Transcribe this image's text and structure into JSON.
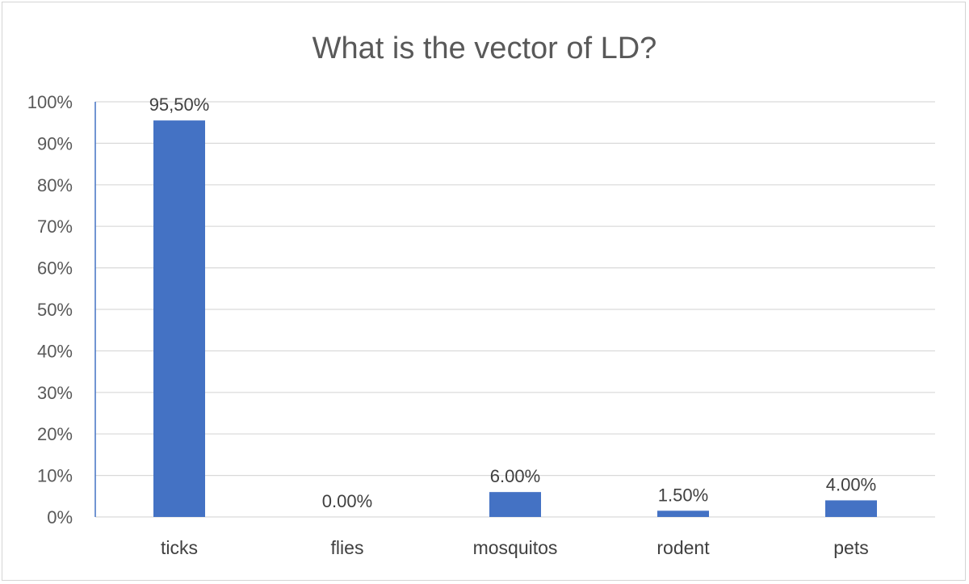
{
  "chart_data": {
    "type": "bar",
    "title": "What is the vector of LD?",
    "categories": [
      "ticks",
      "flies",
      "mosquitos",
      "rodent",
      "pets"
    ],
    "values": [
      95.5,
      0.0,
      6.0,
      1.5,
      4.0
    ],
    "data_labels": [
      "95,50%",
      "0.00%",
      "6.00%",
      "1.50%",
      "4.00%"
    ],
    "ylim": [
      0,
      100
    ],
    "y_ticks": [
      "0%",
      "10%",
      "20%",
      "30%",
      "40%",
      "50%",
      "60%",
      "70%",
      "80%",
      "90%",
      "100%"
    ],
    "grid": true,
    "bar_color": "#4472c4",
    "xlabel": "",
    "ylabel": ""
  }
}
